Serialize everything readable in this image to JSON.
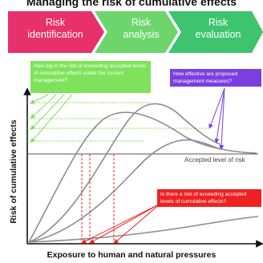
{
  "title": "Managing the risk of cumulative effects",
  "steps": [
    {
      "label_line1": "Risk",
      "label_line2": "identification",
      "color": "#e8306a"
    },
    {
      "label_line1": "Risk",
      "label_line2": "analysis",
      "color": "#6cd66c"
    },
    {
      "label_line1": "Risk",
      "label_line2": "evaluation",
      "color": "#3ec46e"
    }
  ],
  "questions": {
    "current_management": "How big is the risk of exceeding accepted levels of cumulative effects under the current management?",
    "proposed_measures": "How effective are proposed management measures?",
    "exceed_risk": "Is there a risk of exceeding accepted levels of cumulative effects?"
  },
  "axes": {
    "ylabel": "Risk of cumulative effects",
    "xlabel": "Exposure to human and natural pressures"
  },
  "accepted_level_label": "Accepted level of risk",
  "colors": {
    "green": "#7ee35a",
    "purple": "#7b3fe0",
    "red": "#ee2222",
    "curve": "#8c8c8c"
  }
}
